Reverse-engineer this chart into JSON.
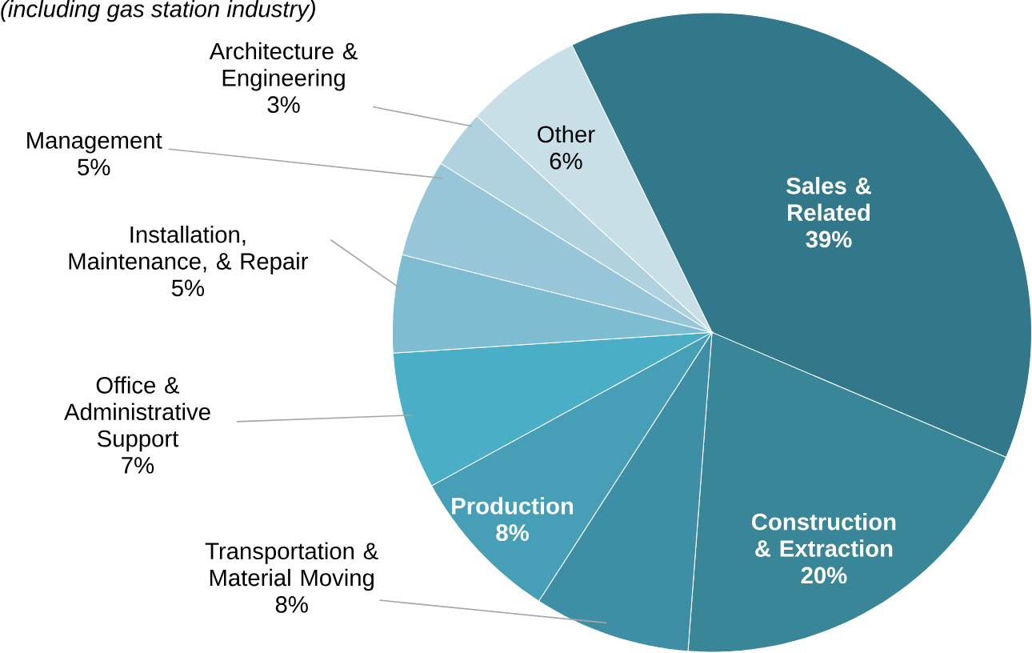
{
  "chart_data": {
    "type": "pie",
    "subtitle": "(including gas station industry)",
    "categories": [
      "Sales & Related",
      "Construction & Extraction",
      "Transportation & Material Moving",
      "Production",
      "Office & Administrative Support",
      "Installation, Maintenance, & Repair",
      "Management",
      "Architecture & Engineering",
      "Other"
    ],
    "values": [
      39,
      20,
      8,
      8,
      7,
      5,
      5,
      3,
      6
    ],
    "value_labels": [
      "39%",
      "20%",
      "8%",
      "8%",
      "7%",
      "5%",
      "5%",
      "3%",
      "6%"
    ],
    "colors": [
      "#33788a",
      "#3a8699",
      "#3e8fa5",
      "#479fb7",
      "#4aaec6",
      "#7dbcd1",
      "#97c6d8",
      "#b0d2df",
      "#c9dfe8"
    ]
  }
}
